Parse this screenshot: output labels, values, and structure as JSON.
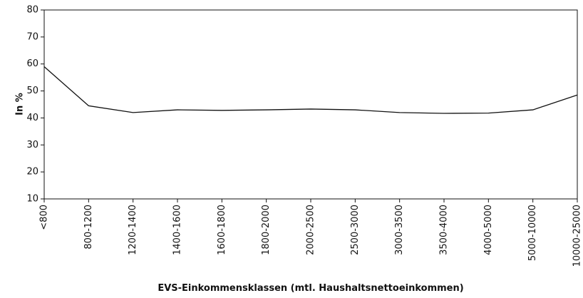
{
  "chart_data": {
    "type": "line",
    "x_label": "EVS-Einkommensklassen (mtl. Haushaltsnettoeinkommen)",
    "y_label": "In %",
    "categories": [
      "<800",
      "800-1200",
      "1200-1400",
      "1400-1600",
      "1600-1800",
      "1800-2000",
      "2000-2500",
      "2500-3000",
      "3000-3500",
      "3500-4000",
      "4000-5000",
      "5000-10000",
      "10000-25000"
    ],
    "values": [
      59,
      44.5,
      42,
      43,
      42.8,
      43,
      43.3,
      43,
      42,
      41.7,
      41.8,
      43,
      48.5
    ],
    "color": "#111111",
    "ylim": [
      10,
      80
    ],
    "yticks": [
      10,
      20,
      30,
      40,
      50,
      60,
      70,
      80
    ],
    "grid": false
  }
}
